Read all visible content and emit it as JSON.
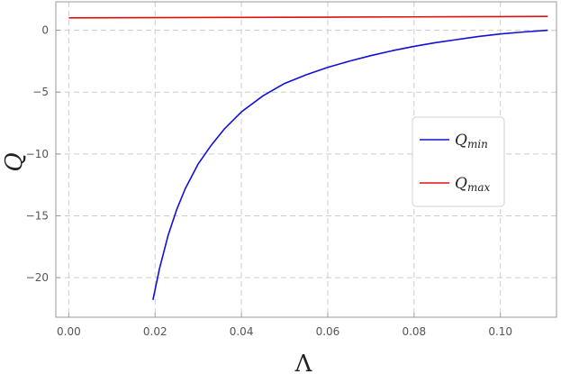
{
  "chart_data": {
    "type": "line",
    "xlabel": "Λ",
    "ylabel": "Q",
    "xlim": [
      -0.003,
      0.113
    ],
    "ylim": [
      -23.2,
      2.3
    ],
    "x_ticks": [
      0.0,
      0.02,
      0.04,
      0.06,
      0.08,
      0.1
    ],
    "x_tick_labels": [
      "0.00",
      "0.02",
      "0.04",
      "0.06",
      "0.08",
      "0.10"
    ],
    "y_ticks": [
      0,
      -5,
      -10,
      -15,
      -20
    ],
    "y_tick_labels": [
      "0",
      "−5",
      "−10",
      "−15",
      "−20"
    ],
    "grid": true,
    "legend_position": "right",
    "series": [
      {
        "name_main": "Q",
        "name_sub": "min",
        "color": "#1010d8",
        "x": [
          0.0195,
          0.021,
          0.023,
          0.025,
          0.027,
          0.03,
          0.033,
          0.036,
          0.04,
          0.045,
          0.05,
          0.055,
          0.06,
          0.065,
          0.07,
          0.075,
          0.08,
          0.085,
          0.09,
          0.095,
          0.1,
          0.105,
          0.111
        ],
        "y": [
          -21.8,
          -19.3,
          -16.6,
          -14.5,
          -12.8,
          -10.8,
          -9.3,
          -8.0,
          -6.6,
          -5.3,
          -4.3,
          -3.6,
          -3.0,
          -2.5,
          -2.05,
          -1.65,
          -1.3,
          -1.0,
          -0.75,
          -0.5,
          -0.3,
          -0.15,
          0.0
        ]
      },
      {
        "name_main": "Q",
        "name_sub": "max",
        "color": "#e01010",
        "x": [
          0.0,
          0.02,
          0.04,
          0.06,
          0.08,
          0.1,
          0.111
        ],
        "y": [
          1.0,
          1.02,
          1.04,
          1.06,
          1.08,
          1.1,
          1.12
        ]
      }
    ]
  }
}
